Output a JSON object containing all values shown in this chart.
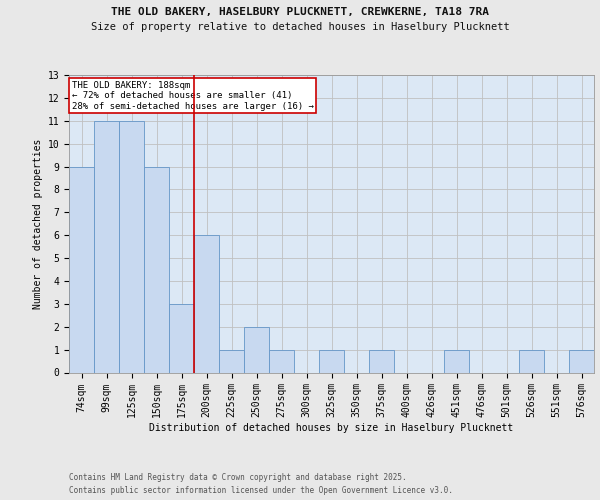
{
  "title1": "THE OLD BAKERY, HASELBURY PLUCKNETT, CREWKERNE, TA18 7RA",
  "title2": "Size of property relative to detached houses in Haselbury Plucknett",
  "xlabel": "Distribution of detached houses by size in Haselbury Plucknett",
  "ylabel": "Number of detached properties",
  "categories": [
    "74sqm",
    "99sqm",
    "125sqm",
    "150sqm",
    "175sqm",
    "200sqm",
    "225sqm",
    "250sqm",
    "275sqm",
    "300sqm",
    "325sqm",
    "350sqm",
    "375sqm",
    "400sqm",
    "426sqm",
    "451sqm",
    "476sqm",
    "501sqm",
    "526sqm",
    "551sqm",
    "576sqm"
  ],
  "values": [
    9,
    11,
    11,
    9,
    3,
    6,
    1,
    2,
    1,
    0,
    1,
    0,
    1,
    0,
    0,
    1,
    0,
    0,
    1,
    0,
    1
  ],
  "bar_color": "#c8d9f0",
  "bar_edge_color": "#6496c8",
  "grid_color": "#c0c0c0",
  "vline_color": "#cc0000",
  "property_label": "THE OLD BAKERY: 188sqm",
  "annotation_line1": "← 72% of detached houses are smaller (41)",
  "annotation_line2": "28% of semi-detached houses are larger (16) →",
  "annotation_box_color": "#ffffff",
  "annotation_box_edge_color": "#cc0000",
  "ylim": [
    0,
    13
  ],
  "yticks": [
    0,
    1,
    2,
    3,
    4,
    5,
    6,
    7,
    8,
    9,
    10,
    11,
    12,
    13
  ],
  "footnote1": "Contains HM Land Registry data © Crown copyright and database right 2025.",
  "footnote2": "Contains public sector information licensed under the Open Government Licence v3.0.",
  "background_color": "#e8e8e8",
  "plot_bg_color": "#dce8f5",
  "title_fontsize": 8,
  "subtitle_fontsize": 7.5,
  "axis_fontsize": 7,
  "tick_fontsize": 7,
  "footnote_fontsize": 5.5
}
